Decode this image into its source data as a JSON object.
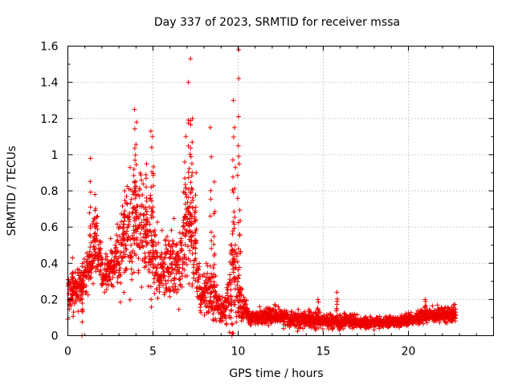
{
  "chart_data": {
    "type": "scatter",
    "title": "Day 337 of 2023, SRMTID for receiver mssa",
    "xlabel": "GPS time / hours",
    "ylabel": "SRMTID / TECUs",
    "xlim": [
      0,
      25
    ],
    "ylim": [
      0,
      1.6
    ],
    "xticks": [
      0,
      5,
      10,
      15,
      20
    ],
    "xtick_labels": [
      "0",
      "5",
      "10",
      "15",
      "20"
    ],
    "yticks": [
      0,
      0.2,
      0.4,
      0.6,
      0.8,
      1.0,
      1.2,
      1.4,
      1.6
    ],
    "ytick_labels": [
      "0",
      "0.2",
      "0.4",
      "0.6",
      "0.8",
      "1",
      "1.2",
      "1.4",
      "1.6"
    ],
    "grid": true,
    "marker": "+",
    "color": "#ee0000",
    "series": [
      {
        "name": "SRMTID",
        "envelope": [
          {
            "x": 0.0,
            "center": 0.24,
            "spread": 0.1
          },
          {
            "x": 0.3,
            "center": 0.22,
            "spread": 0.1
          },
          {
            "x": 0.9,
            "center": 0.3,
            "spread": 0.12
          },
          {
            "x": 1.3,
            "center": 0.4,
            "spread": 0.15
          },
          {
            "x": 1.7,
            "center": 0.52,
            "spread": 0.22
          },
          {
            "x": 2.1,
            "center": 0.32,
            "spread": 0.1
          },
          {
            "x": 2.6,
            "center": 0.38,
            "spread": 0.15
          },
          {
            "x": 3.2,
            "center": 0.48,
            "spread": 0.25
          },
          {
            "x": 3.8,
            "center": 0.6,
            "spread": 0.35
          },
          {
            "x": 4.3,
            "center": 0.62,
            "spread": 0.3
          },
          {
            "x": 4.9,
            "center": 0.5,
            "spread": 0.3
          },
          {
            "x": 5.4,
            "center": 0.35,
            "spread": 0.18
          },
          {
            "x": 6.0,
            "center": 0.38,
            "spread": 0.2
          },
          {
            "x": 6.6,
            "center": 0.4,
            "spread": 0.2
          },
          {
            "x": 7.0,
            "center": 0.6,
            "spread": 0.35
          },
          {
            "x": 7.4,
            "center": 0.5,
            "spread": 0.3
          },
          {
            "x": 7.8,
            "center": 0.2,
            "spread": 0.1
          },
          {
            "x": 8.3,
            "center": 0.25,
            "spread": 0.15
          },
          {
            "x": 8.7,
            "center": 0.2,
            "spread": 0.12
          },
          {
            "x": 9.2,
            "center": 0.12,
            "spread": 0.07
          },
          {
            "x": 9.7,
            "center": 0.35,
            "spread": 0.3
          },
          {
            "x": 10.1,
            "center": 0.2,
            "spread": 0.12
          },
          {
            "x": 10.6,
            "center": 0.1,
            "spread": 0.04
          },
          {
            "x": 12.0,
            "center": 0.11,
            "spread": 0.05
          },
          {
            "x": 13.5,
            "center": 0.09,
            "spread": 0.05
          },
          {
            "x": 15.0,
            "center": 0.08,
            "spread": 0.04
          },
          {
            "x": 16.5,
            "center": 0.08,
            "spread": 0.04
          },
          {
            "x": 18.0,
            "center": 0.07,
            "spread": 0.03
          },
          {
            "x": 19.5,
            "center": 0.08,
            "spread": 0.03
          },
          {
            "x": 21.0,
            "center": 0.11,
            "spread": 0.04
          },
          {
            "x": 22.8,
            "center": 0.12,
            "spread": 0.05
          }
        ],
        "peaks": [
          {
            "x": 0.3,
            "y": 0.43
          },
          {
            "x": 1.3,
            "y": 0.98
          },
          {
            "x": 1.6,
            "y": 0.78
          },
          {
            "x": 3.3,
            "y": 0.8
          },
          {
            "x": 3.9,
            "y": 1.25
          },
          {
            "x": 4.0,
            "y": 1.18
          },
          {
            "x": 4.6,
            "y": 0.95
          },
          {
            "x": 4.9,
            "y": 1.13
          },
          {
            "x": 5.0,
            "y": 1.1
          },
          {
            "x": 6.9,
            "y": 1.1
          },
          {
            "x": 7.1,
            "y": 1.4
          },
          {
            "x": 7.2,
            "y": 1.53
          },
          {
            "x": 7.3,
            "y": 1.2
          },
          {
            "x": 7.5,
            "y": 0.9
          },
          {
            "x": 8.4,
            "y": 1.15
          },
          {
            "x": 8.6,
            "y": 0.85
          },
          {
            "x": 9.7,
            "y": 1.3
          },
          {
            "x": 9.8,
            "y": 1.15
          },
          {
            "x": 10.0,
            "y": 1.58
          },
          {
            "x": 10.1,
            "y": 0.95
          },
          {
            "x": 14.7,
            "y": 0.2
          },
          {
            "x": 15.8,
            "y": 0.24
          },
          {
            "x": 21.0,
            "y": 0.2
          },
          {
            "x": 0.85,
            "y": 0.0
          },
          {
            "x": 9.6,
            "y": 0.0
          }
        ]
      }
    ]
  }
}
